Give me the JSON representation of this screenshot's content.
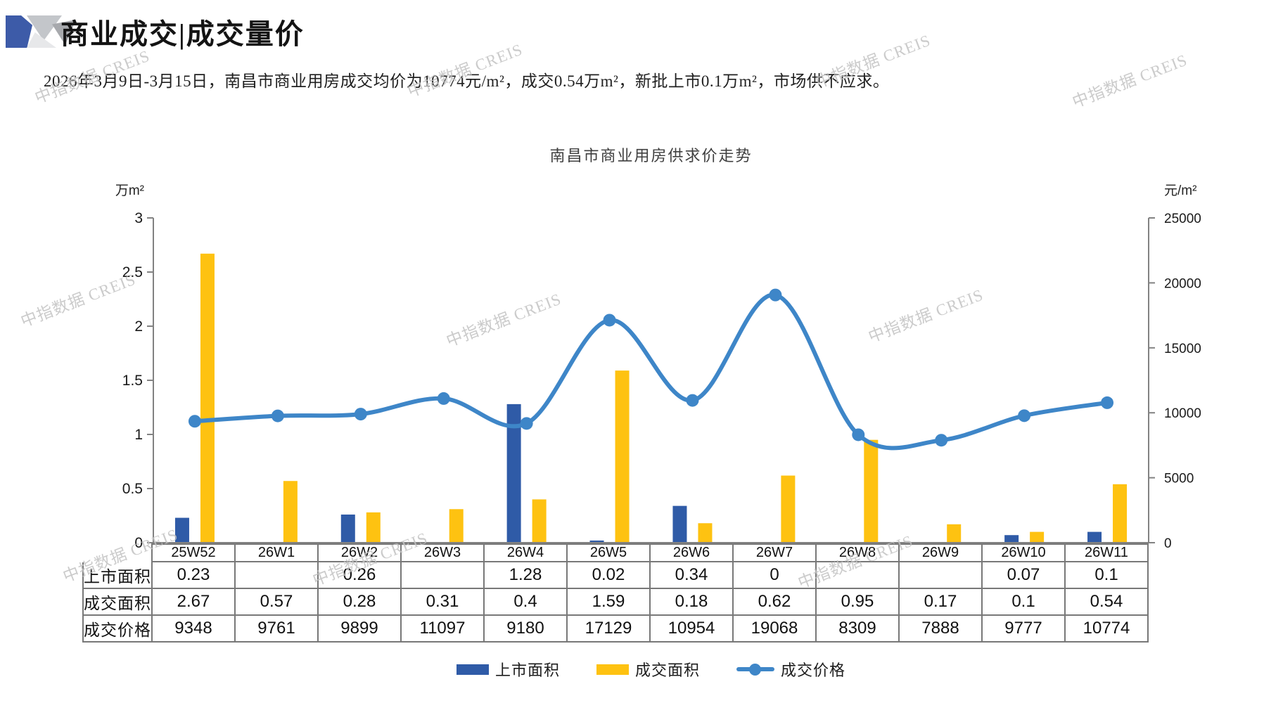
{
  "header": {
    "title": "商业成交|成交量价",
    "subtitle": "2026年3月9日-3月15日，南昌市商业用房成交均价为10774元/m²，成交0.54万m²，新批上市0.1万m²，市场供不应求。"
  },
  "watermark": {
    "text": "中指数据 CREIS"
  },
  "chart_data": {
    "type": "bar+line",
    "title": "南昌市商业用房供求价走势",
    "categories": [
      "25W52",
      "26W1",
      "26W2",
      "26W3",
      "26W4",
      "26W5",
      "26W6",
      "26W7",
      "26W8",
      "26W9",
      "26W10",
      "26W11"
    ],
    "series": [
      {
        "name": "上市面积",
        "type": "bar",
        "axis": "left",
        "color": "#2f5ba7",
        "values": [
          0.23,
          null,
          0.26,
          null,
          1.28,
          0.02,
          0.34,
          0,
          null,
          null,
          0.07,
          0.1
        ]
      },
      {
        "name": "成交面积",
        "type": "bar",
        "axis": "left",
        "color": "#fec211",
        "values": [
          2.67,
          0.57,
          0.28,
          0.31,
          0.4,
          1.59,
          0.18,
          0.62,
          0.95,
          0.17,
          0.1,
          0.54
        ]
      },
      {
        "name": "成交价格",
        "type": "line",
        "axis": "right",
        "color": "#3e86c8",
        "values": [
          9348,
          9761,
          9899,
          11097,
          9180,
          17129,
          10954,
          19068,
          8309,
          7888,
          9777,
          10774
        ]
      }
    ],
    "left_axis": {
      "unit": "万m²",
      "min": 0,
      "max": 3,
      "ticks": [
        "0",
        "0.5",
        "1",
        "1.5",
        "2",
        "2.5",
        "3"
      ]
    },
    "right_axis": {
      "unit": "元/m²",
      "min": 0,
      "max": 25000,
      "ticks": [
        "0",
        "5000",
        "10000",
        "15000",
        "20000",
        "25000"
      ]
    },
    "grid": false,
    "legend_position": "bottom"
  },
  "table": {
    "columns": [
      "25W52",
      "26W1",
      "26W2",
      "26W3",
      "26W4",
      "26W5",
      "26W6",
      "26W7",
      "26W8",
      "26W9",
      "26W10",
      "26W11"
    ],
    "rows": [
      {
        "label": "上市面积",
        "cells": [
          "0.23",
          "",
          "0.26",
          "",
          "1.28",
          "0.02",
          "0.34",
          "0",
          "",
          "",
          "0.07",
          "0.1"
        ]
      },
      {
        "label": "成交面积",
        "cells": [
          "2.67",
          "0.57",
          "0.28",
          "0.31",
          "0.4",
          "1.59",
          "0.18",
          "0.62",
          "0.95",
          "0.17",
          "0.1",
          "0.54"
        ]
      },
      {
        "label": "成交价格",
        "cells": [
          "9348",
          "9761",
          "9899",
          "11097",
          "9180",
          "17129",
          "10954",
          "19068",
          "8309",
          "7888",
          "9777",
          "10774"
        ]
      }
    ]
  },
  "colors": {
    "axis": "#828282",
    "table_border": "#787878",
    "watermark": "#c3c3c3"
  }
}
